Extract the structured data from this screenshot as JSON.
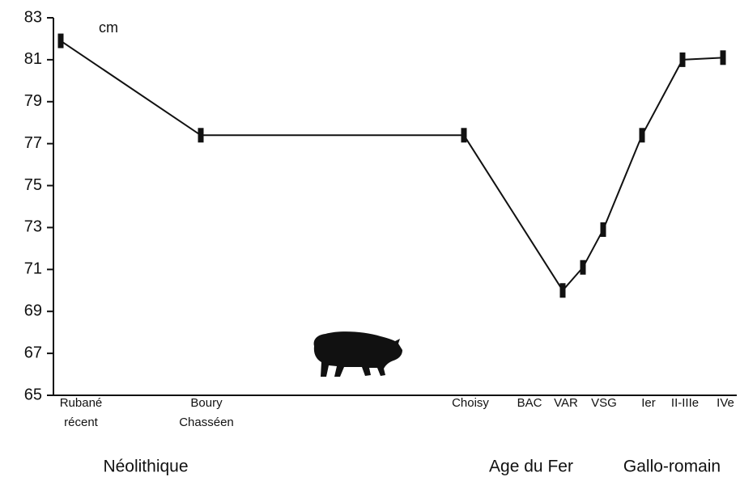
{
  "chart_data": {
    "type": "line",
    "ylabel": "cm",
    "categories": [
      "Rubané récent",
      "Boury Chasséen",
      "Choisy",
      "BAC",
      "VAR",
      "VSG",
      "Ier",
      "II-IIIe",
      "IVe"
    ],
    "values": [
      81.9,
      77.4,
      77.4,
      70.0,
      71.1,
      72.9,
      77.4,
      81.0,
      81.1
    ],
    "color": "#111111",
    "ylim": [
      65,
      83
    ],
    "yticks": [
      65,
      67,
      69,
      71,
      73,
      75,
      77,
      79,
      81,
      83
    ],
    "annotations": [
      "Néolithique",
      "Age du Fer",
      "Gallo-romain"
    ]
  }
}
